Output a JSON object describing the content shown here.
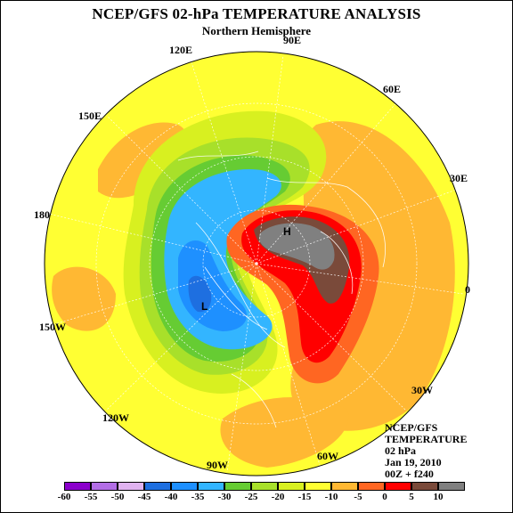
{
  "header": {
    "title": "NCEP/GFS 02-hPa TEMPERATURE ANALYSIS",
    "subtitle": "Northern Hemisphere"
  },
  "longitudes": {
    "l90e": "90E",
    "l120e": "120E",
    "l60e": "60E",
    "l150e": "150E",
    "l30e": "30E",
    "l180": "180",
    "l0": "0",
    "l150w": "150W",
    "l30w": "30W",
    "l120w": "120W",
    "l60w": "60W",
    "l90w": "90W"
  },
  "high_marker": "H",
  "low_marker": "L",
  "info": {
    "line1": "NCEP/GFS",
    "line2": "TEMPERATURE",
    "line3": "02 hPa",
    "line4": "Jan 19, 2010",
    "line5": "00Z + f240"
  },
  "colorbar": {
    "colors": [
      "#8b00cc",
      "#b36ee6",
      "#e0b3f0",
      "#1e6fe0",
      "#1e90ff",
      "#33b5ff",
      "#66cc33",
      "#a8e02a",
      "#d8f020",
      "#ffff33",
      "#ffb833",
      "#ff6622",
      "#ff0000",
      "#7a4a3a",
      "#808080"
    ],
    "ticks": [
      "-60",
      "-55",
      "-50",
      "-45",
      "-40",
      "-35",
      "-30",
      "-25",
      "-20",
      "-15",
      "-10",
      "-5",
      "0",
      "5",
      "10"
    ]
  },
  "field_colors": {
    "yellow": "#ffff33",
    "yellow_green": "#d8f020",
    "green_light": "#a8e02a",
    "green": "#66cc33",
    "cyan_blue": "#33b5ff",
    "blue": "#1e90ff",
    "blue_dark": "#1e6fe0",
    "orange": "#ffb833",
    "orange_dark": "#ff6622",
    "red": "#ff0000",
    "brown": "#7a4a3a",
    "gray": "#808080"
  }
}
